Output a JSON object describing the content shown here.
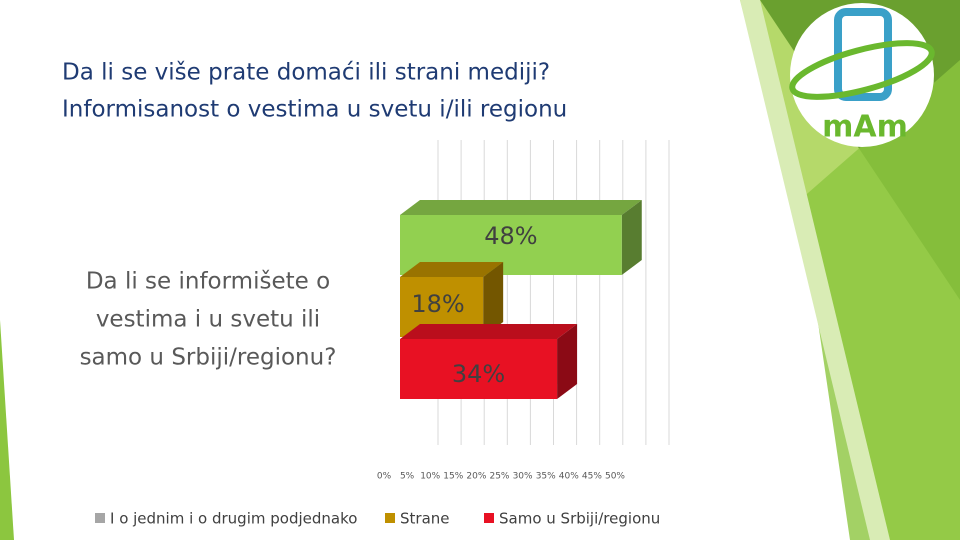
{
  "slide_title": [
    "Da li se više prate domaći ili strani mediji?",
    "Informisanost o vestima u svetu i/ili regionu"
  ],
  "logo": "mAm",
  "chart_data": {
    "type": "bar",
    "orientation": "horizontal",
    "category_label": [
      "Da li se informišete o",
      "vestima i u svetu ili",
      "samo u Srbiji/regionu?"
    ],
    "series": [
      {
        "name": "I o jednim i o drugim podjednako",
        "color": "#92d050",
        "legend_color": "#a6a6a6",
        "values": [
          48
        ],
        "value_labels": [
          "48%"
        ]
      },
      {
        "name": "Strane",
        "color": "#bf9000",
        "legend_color": "#bf9000",
        "values": [
          18
        ],
        "value_labels": [
          "18%"
        ]
      },
      {
        "name": "Samo u Srbiji/regionu",
        "color": "#e81123",
        "legend_color": "#e81123",
        "values": [
          34
        ],
        "value_labels": [
          "34%"
        ]
      }
    ],
    "xlim": [
      0,
      50
    ],
    "xticks": [
      {
        "value": 0,
        "label": "0%"
      },
      {
        "value": 5,
        "label": "5%"
      },
      {
        "value": 10,
        "label": "10%"
      },
      {
        "value": 15,
        "label": "15%"
      },
      {
        "value": 20,
        "label": "20%"
      },
      {
        "value": 25,
        "label": "25%"
      },
      {
        "value": 30,
        "label": "30%"
      },
      {
        "value": 35,
        "label": "35%"
      },
      {
        "value": 40,
        "label": "40%"
      },
      {
        "value": 45,
        "label": "45%"
      },
      {
        "value": 50,
        "label": "50%"
      }
    ],
    "grid": true,
    "legend": "bottom"
  }
}
